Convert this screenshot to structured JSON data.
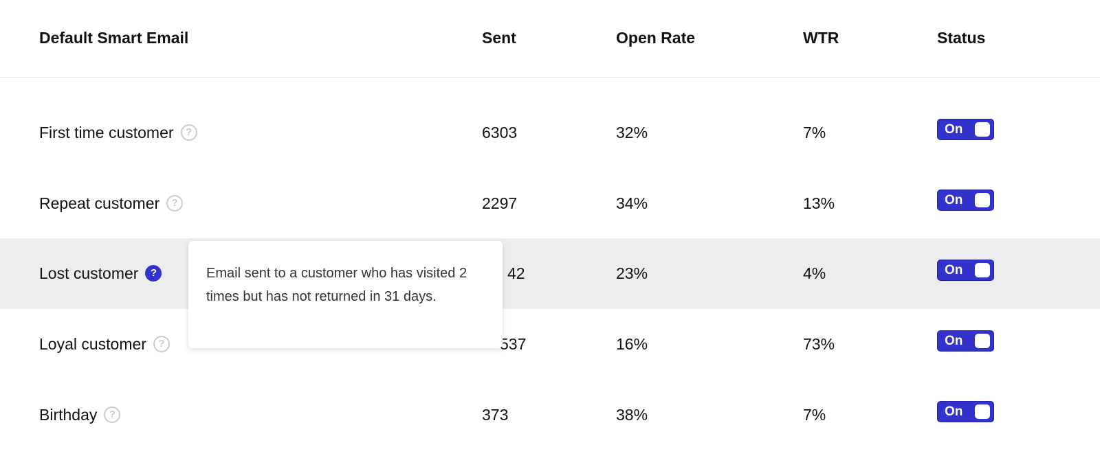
{
  "header": {
    "name": "Default Smart Email",
    "sent": "Sent",
    "open_rate": "Open Rate",
    "wtr": "WTR",
    "status": "Status"
  },
  "rows": [
    {
      "name": "First time customer",
      "sent": "6303",
      "open_rate": "32%",
      "wtr": "7%",
      "status": "On"
    },
    {
      "name": "Repeat customer",
      "sent": "2297",
      "open_rate": "34%",
      "wtr": "13%",
      "status": "On"
    },
    {
      "name": "Lost customer",
      "sent": "42",
      "open_rate": "23%",
      "wtr": "4%",
      "status": "On"
    },
    {
      "name": "Loyal customer",
      "sent": "537",
      "open_rate": "16%",
      "wtr": "73%",
      "status": "On"
    },
    {
      "name": "Birthday",
      "sent": "373",
      "open_rate": "38%",
      "wtr": "7%",
      "status": "On"
    }
  ],
  "help_icon": "?",
  "tooltip": "Email sent to a customer who has visited 2 times but has not returned in 31 days.",
  "colors": {
    "accent": "#3333cc",
    "highlight_row": "#ededed"
  }
}
